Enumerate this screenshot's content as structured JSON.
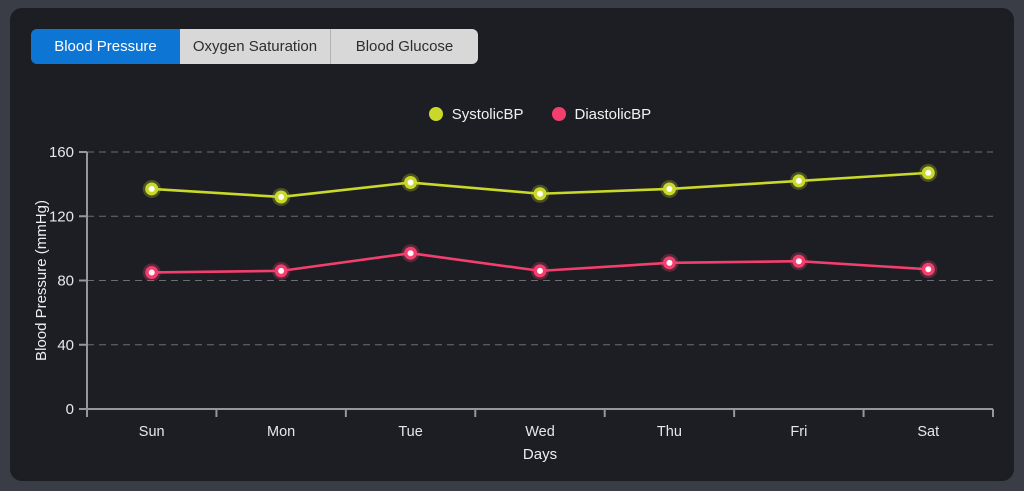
{
  "window": {
    "frame_color": "#3a3d45",
    "card_color": "#1c1e23"
  },
  "tabs": [
    {
      "label": "Blood Pressure",
      "active": true
    },
    {
      "label": "Oxygen Saturation",
      "active": false
    },
    {
      "label": "Blood Glucose",
      "active": false
    }
  ],
  "tab_colors": {
    "active_bg": "#0d76d4",
    "active_text": "#ffffff",
    "inactive_bg": "#d8d8d8",
    "inactive_text": "#2e2e2e"
  },
  "chart_data": {
    "type": "line",
    "categories": [
      "Sun",
      "Mon",
      "Tue",
      "Wed",
      "Thu",
      "Fri",
      "Sat"
    ],
    "series": [
      {
        "name": "SystolicBP",
        "color": "#c9d829",
        "values": [
          137,
          132,
          141,
          134,
          137,
          142,
          147
        ]
      },
      {
        "name": "DiastolicBP",
        "color": "#f43f6e",
        "values": [
          85,
          86,
          97,
          86,
          91,
          92,
          87
        ]
      }
    ],
    "xlabel": "Days",
    "ylabel": "Blood Pressure (mmHg)",
    "ylim": [
      0,
      160
    ],
    "yticks": [
      0,
      40,
      80,
      120,
      160
    ],
    "grid": "horizontal-dashed",
    "legend_position": "top-center",
    "marker_style": "circle-with-light-center"
  },
  "chart_colors": {
    "gridline": "#6b6d72",
    "axis": "#95979b",
    "tick_text": "#e8e8ea",
    "label_text": "#eceff1",
    "marker_center": "#ffffff"
  }
}
